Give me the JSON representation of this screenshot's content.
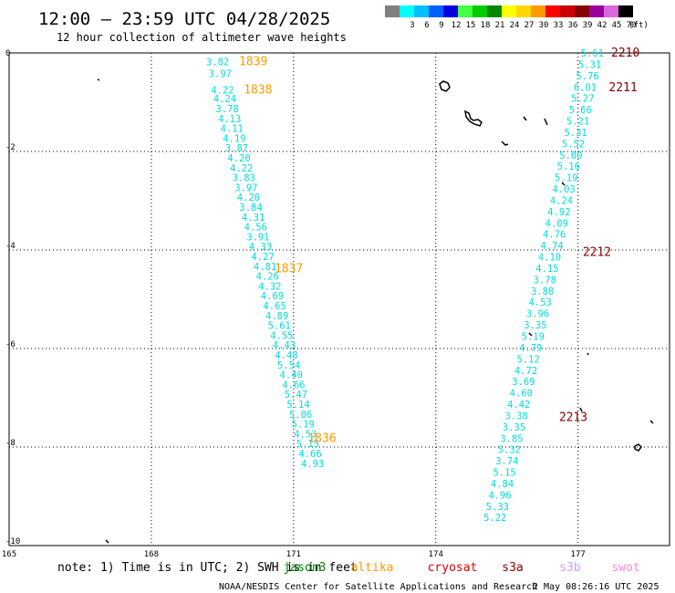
{
  "header": {
    "title": "12:00 – 23:59 UTC 04/28/2025",
    "subtitle": "12 hour collection of altimeter wave heights"
  },
  "legend": {
    "unit": "(ft)",
    "entries": [
      {
        "label": "",
        "color": "#808080"
      },
      {
        "label": "3",
        "color": "#00ffff"
      },
      {
        "label": "6",
        "color": "#00bfff"
      },
      {
        "label": "9",
        "color": "#0060ff"
      },
      {
        "label": "12",
        "color": "#0000e0"
      },
      {
        "label": "15",
        "color": "#44ff44"
      },
      {
        "label": "18",
        "color": "#00cc00"
      },
      {
        "label": "21",
        "color": "#008800"
      },
      {
        "label": "24",
        "color": "#ffff00"
      },
      {
        "label": "27",
        "color": "#ffd700"
      },
      {
        "label": "30",
        "color": "#ff9900"
      },
      {
        "label": "33",
        "color": "#ff0000"
      },
      {
        "label": "36",
        "color": "#cc0000"
      },
      {
        "label": "39",
        "color": "#880000"
      },
      {
        "label": "42",
        "color": "#990099"
      },
      {
        "label": "45",
        "color": "#dd66dd"
      },
      {
        "label": "70",
        "color": "#000000"
      }
    ]
  },
  "axes": {
    "lon_ticks": [
      "165",
      "168",
      "171",
      "174",
      "177"
    ],
    "lat_ticks": [
      "0",
      "-2",
      "-4",
      "-6",
      "-8",
      "-10"
    ]
  },
  "colors": {
    "wave": "#00dddd",
    "altika": "#ff9900",
    "s3a": "#880000",
    "s3b": "#c8a0ff",
    "swot": "#ff88cc",
    "cryosat": "#dd0000",
    "jason3": "#008800"
  },
  "tracks": [
    {
      "satellite": "altika",
      "times": [
        {
          "label": "1839",
          "lon": 170.15,
          "lat": -0.18
        },
        {
          "label": "1838",
          "lon": 170.25,
          "lat": -0.75
        },
        {
          "label": "1837",
          "lon": 170.9,
          "lat": -4.38
        },
        {
          "label": "1836",
          "lon": 171.6,
          "lat": -7.82
        }
      ],
      "values": [
        {
          "v": "3.82",
          "lon": 169.4,
          "lat": -0.18
        },
        {
          "v": "3.97",
          "lon": 169.45,
          "lat": -0.42
        },
        {
          "v": "4.22",
          "lon": 169.5,
          "lat": -0.75
        },
        {
          "v": "4.24",
          "lon": 169.55,
          "lat": -0.93
        },
        {
          "v": "3.78",
          "lon": 169.6,
          "lat": -1.13
        },
        {
          "v": "4.13",
          "lon": 169.65,
          "lat": -1.33
        },
        {
          "v": "4.11",
          "lon": 169.7,
          "lat": -1.53
        },
        {
          "v": "4.19",
          "lon": 169.75,
          "lat": -1.73
        },
        {
          "v": "3.87",
          "lon": 169.8,
          "lat": -1.93
        },
        {
          "v": "4.20",
          "lon": 169.85,
          "lat": -2.13
        },
        {
          "v": "4.22",
          "lon": 169.9,
          "lat": -2.33
        },
        {
          "v": "3.83",
          "lon": 169.95,
          "lat": -2.53
        },
        {
          "v": "3.97",
          "lon": 170.0,
          "lat": -2.73
        },
        {
          "v": "4.20",
          "lon": 170.05,
          "lat": -2.93
        },
        {
          "v": "3.84",
          "lon": 170.1,
          "lat": -3.13
        },
        {
          "v": "4.31",
          "lon": 170.15,
          "lat": -3.33
        },
        {
          "v": "4.56",
          "lon": 170.2,
          "lat": -3.53
        },
        {
          "v": "3.91",
          "lon": 170.25,
          "lat": -3.73
        },
        {
          "v": "4.33",
          "lon": 170.3,
          "lat": -3.93
        },
        {
          "v": "4.27",
          "lon": 170.35,
          "lat": -4.13
        },
        {
          "v": "4.81",
          "lon": 170.4,
          "lat": -4.33
        },
        {
          "v": "4.26",
          "lon": 170.45,
          "lat": -4.53
        },
        {
          "v": "4.32",
          "lon": 170.5,
          "lat": -4.73
        },
        {
          "v": "4.69",
          "lon": 170.55,
          "lat": -4.93
        },
        {
          "v": "4.65",
          "lon": 170.6,
          "lat": -5.13
        },
        {
          "v": "4.89",
          "lon": 170.65,
          "lat": -5.33
        },
        {
          "v": "5.61",
          "lon": 170.7,
          "lat": -5.53
        },
        {
          "v": "4.55",
          "lon": 170.75,
          "lat": -5.73
        },
        {
          "v": "4.43",
          "lon": 170.8,
          "lat": -5.93
        },
        {
          "v": "4.48",
          "lon": 170.85,
          "lat": -6.13
        },
        {
          "v": "5.54",
          "lon": 170.9,
          "lat": -6.33
        },
        {
          "v": "4.40",
          "lon": 170.95,
          "lat": -6.53
        },
        {
          "v": "4.66",
          "lon": 171.0,
          "lat": -6.73
        },
        {
          "v": "5.47",
          "lon": 171.05,
          "lat": -6.93
        },
        {
          "v": "5.14",
          "lon": 171.1,
          "lat": -7.13
        },
        {
          "v": "5.06",
          "lon": 171.15,
          "lat": -7.33
        },
        {
          "v": "5.19",
          "lon": 171.2,
          "lat": -7.53
        },
        {
          "v": "4.53",
          "lon": 171.25,
          "lat": -7.73
        },
        {
          "v": "5.15",
          "lon": 171.3,
          "lat": -7.93
        },
        {
          "v": "4.66",
          "lon": 171.35,
          "lat": -8.13
        },
        {
          "v": "4.93",
          "lon": 171.4,
          "lat": -8.33
        }
      ]
    },
    {
      "satellite": "s3a",
      "times": [
        {
          "label": "2210",
          "lon": 178.0,
          "lat": -0.0
        },
        {
          "label": "2211",
          "lon": 177.95,
          "lat": -0.7
        },
        {
          "label": "2212",
          "lon": 177.4,
          "lat": -4.05
        },
        {
          "label": "2213",
          "lon": 176.9,
          "lat": -7.4
        }
      ],
      "values": [
        {
          "v": "5.61",
          "lon": 177.3,
          "lat": 0.0
        },
        {
          "v": "5.31",
          "lon": 177.25,
          "lat": -0.23
        },
        {
          "v": "5.76",
          "lon": 177.2,
          "lat": -0.46
        },
        {
          "v": "6.01",
          "lon": 177.15,
          "lat": -0.69
        },
        {
          "v": "5.27",
          "lon": 177.1,
          "lat": -0.92
        },
        {
          "v": "5.66",
          "lon": 177.05,
          "lat": -1.15
        },
        {
          "v": "5.21",
          "lon": 177.0,
          "lat": -1.38
        },
        {
          "v": "5.31",
          "lon": 176.95,
          "lat": -1.61
        },
        {
          "v": "5.52",
          "lon": 176.9,
          "lat": -1.84
        },
        {
          "v": "5.00",
          "lon": 176.85,
          "lat": -2.07
        },
        {
          "v": "5.16",
          "lon": 176.8,
          "lat": -2.3
        },
        {
          "v": "5.19",
          "lon": 176.75,
          "lat": -2.53
        },
        {
          "v": "4.03",
          "lon": 176.7,
          "lat": -2.76
        },
        {
          "v": "4.24",
          "lon": 176.65,
          "lat": -2.99
        },
        {
          "v": "4.92",
          "lon": 176.6,
          "lat": -3.22
        },
        {
          "v": "4.09",
          "lon": 176.55,
          "lat": -3.45
        },
        {
          "v": "4.76",
          "lon": 176.5,
          "lat": -3.68
        },
        {
          "v": "4.74",
          "lon": 176.45,
          "lat": -3.91
        },
        {
          "v": "4.10",
          "lon": 176.4,
          "lat": -4.14
        },
        {
          "v": "4.15",
          "lon": 176.35,
          "lat": -4.37
        },
        {
          "v": "3.78",
          "lon": 176.3,
          "lat": -4.6
        },
        {
          "v": "3.88",
          "lon": 176.25,
          "lat": -4.83
        },
        {
          "v": "4.53",
          "lon": 176.2,
          "lat": -5.06
        },
        {
          "v": "3.96",
          "lon": 176.15,
          "lat": -5.29
        },
        {
          "v": "3.35",
          "lon": 176.1,
          "lat": -5.52
        },
        {
          "v": "5.19",
          "lon": 176.05,
          "lat": -5.75
        },
        {
          "v": "4.79",
          "lon": 176.0,
          "lat": -5.98
        },
        {
          "v": "5.12",
          "lon": 175.95,
          "lat": -6.21
        },
        {
          "v": "4.72",
          "lon": 175.9,
          "lat": -6.44
        },
        {
          "v": "3.69",
          "lon": 175.85,
          "lat": -6.67
        },
        {
          "v": "4.60",
          "lon": 175.8,
          "lat": -6.9
        },
        {
          "v": "4.42",
          "lon": 175.75,
          "lat": -7.13
        },
        {
          "v": "3.38",
          "lon": 175.7,
          "lat": -7.36
        },
        {
          "v": "3.35",
          "lon": 175.65,
          "lat": -7.59
        },
        {
          "v": "3.85",
          "lon": 175.6,
          "lat": -7.82
        },
        {
          "v": "5.32",
          "lon": 175.55,
          "lat": -8.05
        },
        {
          "v": "3.74",
          "lon": 175.5,
          "lat": -8.28
        },
        {
          "v": "5.15",
          "lon": 175.45,
          "lat": -8.51
        },
        {
          "v": "4.84",
          "lon": 175.4,
          "lat": -8.74
        },
        {
          "v": "4.96",
          "lon": 175.35,
          "lat": -8.97
        },
        {
          "v": "5.33",
          "lon": 175.3,
          "lat": -9.2
        },
        {
          "v": "5.22",
          "lon": 175.25,
          "lat": -9.43
        }
      ]
    }
  ],
  "satellites_legend": [
    {
      "label": "jason3",
      "color": "#008800"
    },
    {
      "label": "altika",
      "color": "#ff9900"
    },
    {
      "label": "cryosat",
      "color": "#dd0000"
    },
    {
      "label": "s3a",
      "color": "#880000"
    },
    {
      "label": "s3b",
      "color": "#c8a0ff"
    },
    {
      "label": "swot",
      "color": "#ff88cc"
    }
  ],
  "footer": {
    "note": "note: 1) Time is in UTC; 2) SWH is in feet",
    "credit": "NOAA/NESDIS Center for Satellite Applications and Research",
    "generated": "2 May 08:26:16 UTC 2025"
  }
}
